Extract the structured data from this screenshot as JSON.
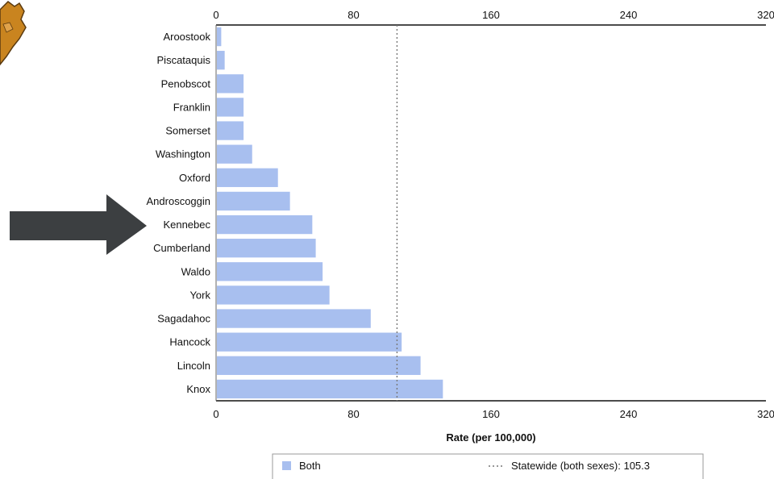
{
  "chart_data": {
    "type": "bar",
    "orientation": "horizontal",
    "categories": [
      "Aroostook",
      "Piscataquis",
      "Penobscot",
      "Franklin",
      "Somerset",
      "Washington",
      "Oxford",
      "Androscoggin",
      "Kennebec",
      "Cumberland",
      "Waldo",
      "York",
      "Sagadahoc",
      "Hancock",
      "Lincoln",
      "Knox"
    ],
    "series": [
      {
        "name": "Both",
        "values": [
          3,
          5,
          16,
          16,
          16,
          21,
          36,
          43,
          56,
          58,
          62,
          66,
          90,
          108,
          119,
          132
        ]
      }
    ],
    "xlabel": "Rate (per 100,000)",
    "ylabel": "",
    "xlim": [
      0,
      320
    ],
    "x_ticks": [
      "0",
      "80",
      "160",
      "240",
      "320"
    ],
    "reference_line": {
      "label": "Statewide (both sexes): 105.3",
      "value": 105.3,
      "style": "dotted"
    },
    "legend_position": "bottom",
    "grid": false,
    "bar_color": "#a8bfef",
    "highlighted_category": "Kennebec"
  },
  "decorations": {
    "arrow_color": "#3c3f41",
    "arrow_icon": "right-arrow-icon",
    "corner_logo": "maine-map-icon"
  }
}
